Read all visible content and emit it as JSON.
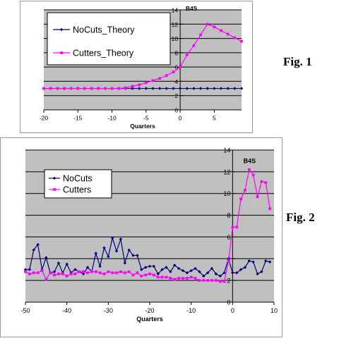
{
  "figures": [
    {
      "label": "Fig. 1",
      "chart_data": {
        "type": "line",
        "title": "B4S",
        "xlabel": "Quarters",
        "ylabel": "",
        "xlim": [
          -20,
          9
        ],
        "ylim": [
          0,
          14
        ],
        "x_ticks": [
          -20,
          -15,
          -10,
          -5,
          0,
          5
        ],
        "y_ticks": [
          0,
          2,
          4,
          6,
          8,
          10,
          12,
          14
        ],
        "grid": true,
        "plot_background": "#c0c0c0",
        "legend_position": "upper-left",
        "series": [
          {
            "name": "NoCuts_Theory",
            "color": "#000080",
            "marker": "diamond",
            "x": [
              -20,
              -19,
              -18,
              -17,
              -16,
              -15,
              -14,
              -13,
              -12,
              -11,
              -10,
              -9,
              -8,
              -7,
              -6,
              -5,
              -4,
              -3,
              -2,
              -1,
              0,
              1,
              2,
              3,
              4,
              5,
              6,
              7,
              8,
              9
            ],
            "y": [
              3.0,
              3.0,
              3.0,
              3.0,
              3.0,
              3.0,
              3.0,
              3.0,
              3.0,
              3.0,
              3.0,
              3.0,
              3.0,
              3.0,
              3.0,
              3.0,
              3.0,
              3.0,
              3.0,
              3.0,
              3.0,
              3.0,
              3.0,
              3.0,
              3.0,
              3.0,
              3.0,
              3.0,
              3.0,
              3.0
            ]
          },
          {
            "name": "Cutters_Theory",
            "color": "#ff00ff",
            "marker": "square",
            "x": [
              -20,
              -19,
              -18,
              -17,
              -16,
              -15,
              -14,
              -13,
              -12,
              -11,
              -10,
              -9,
              -8,
              -7,
              -6,
              -5,
              -4,
              -3,
              -2,
              -1,
              0,
              1,
              2,
              3,
              4,
              5,
              6,
              7,
              8,
              9
            ],
            "y": [
              3.0,
              3.0,
              3.0,
              3.0,
              3.0,
              3.0,
              3.0,
              3.0,
              3.0,
              3.0,
              3.0,
              3.0,
              3.1,
              3.3,
              3.5,
              3.8,
              4.1,
              4.4,
              4.8,
              5.3,
              6.0,
              7.7,
              9.0,
              10.5,
              12.0,
              11.6,
              11.1,
              10.6,
              10.1,
              9.6
            ]
          }
        ]
      }
    },
    {
      "label": "Fig. 2",
      "chart_data": {
        "type": "line",
        "title": "B4S",
        "xlabel": "Quarters",
        "ylabel": "",
        "xlim": [
          -50,
          10
        ],
        "ylim": [
          0,
          14
        ],
        "x_ticks": [
          -50,
          -40,
          -30,
          -20,
          -10,
          0,
          10
        ],
        "y_ticks": [
          0,
          2,
          4,
          6,
          8,
          10,
          12,
          14
        ],
        "grid": true,
        "plot_background": "#c0c0c0",
        "legend_position": "upper-left",
        "series": [
          {
            "name": "NoCuts",
            "color": "#000080",
            "marker": "diamond",
            "x": [
              -50,
              -49,
              -48,
              -47,
              -46,
              -45,
              -44,
              -43,
              -42,
              -41,
              -40,
              -39,
              -38,
              -37,
              -36,
              -35,
              -34,
              -33,
              -32,
              -31,
              -30,
              -29,
              -28,
              -27,
              -26,
              -25,
              -24,
              -23,
              -22,
              -21,
              -20,
              -19,
              -18,
              -17,
              -16,
              -15,
              -14,
              -13,
              -12,
              -11,
              -10,
              -9,
              -8,
              -7,
              -6,
              -5,
              -4,
              -3,
              -2,
              -1,
              0,
              1,
              2,
              3,
              4,
              5,
              6,
              7,
              8,
              9
            ],
            "y": [
              3.0,
              3.0,
              4.8,
              5.3,
              3.0,
              4.1,
              2.7,
              2.8,
              3.6,
              2.7,
              3.5,
              2.7,
              3.0,
              2.8,
              2.6,
              3.2,
              2.8,
              4.5,
              3.3,
              5.0,
              4.2,
              5.9,
              4.7,
              5.8,
              3.6,
              4.8,
              4.3,
              4.3,
              3.0,
              3.2,
              3.3,
              3.3,
              2.6,
              3.0,
              3.2,
              2.8,
              3.4,
              3.1,
              2.9,
              2.7,
              2.9,
              3.1,
              2.8,
              2.4,
              2.7,
              3.1,
              2.6,
              2.4,
              2.7,
              4.0,
              2.7,
              2.7,
              3.0,
              3.2,
              3.8,
              3.7,
              2.6,
              2.8,
              3.8,
              3.7
            ]
          },
          {
            "name": "Cutters",
            "color": "#ff00ff",
            "marker": "square",
            "x": [
              -50,
              -49,
              -48,
              -47,
              -46,
              -45,
              -44,
              -43,
              -42,
              -41,
              -40,
              -39,
              -38,
              -37,
              -36,
              -35,
              -34,
              -33,
              -32,
              -31,
              -30,
              -29,
              -28,
              -27,
              -26,
              -25,
              -24,
              -23,
              -22,
              -21,
              -20,
              -19,
              -18,
              -17,
              -16,
              -15,
              -14,
              -13,
              -12,
              -11,
              -10,
              -9,
              -8,
              -7,
              -6,
              -5,
              -4,
              -3,
              -2,
              -1,
              0,
              1,
              2,
              3,
              4,
              5,
              6,
              7,
              8,
              9
            ],
            "y": [
              2.8,
              2.6,
              2.7,
              2.7,
              2.9,
              2.1,
              2.7,
              2.5,
              2.6,
              2.6,
              2.4,
              2.6,
              2.6,
              2.8,
              2.8,
              2.7,
              2.8,
              2.8,
              2.7,
              2.6,
              2.8,
              2.7,
              2.7,
              2.8,
              2.7,
              2.8,
              2.5,
              2.7,
              2.4,
              2.5,
              2.6,
              2.5,
              2.3,
              2.3,
              2.3,
              2.2,
              2.1,
              2.2,
              2.2,
              2.2,
              2.3,
              2.2,
              2.0,
              2.0,
              2.0,
              2.0,
              2.0,
              1.9,
              1.9,
              3.8,
              6.9,
              6.9,
              9.5,
              10.3,
              12.2,
              11.7,
              9.7,
              11.1,
              11.0,
              8.6
            ]
          }
        ]
      }
    }
  ]
}
